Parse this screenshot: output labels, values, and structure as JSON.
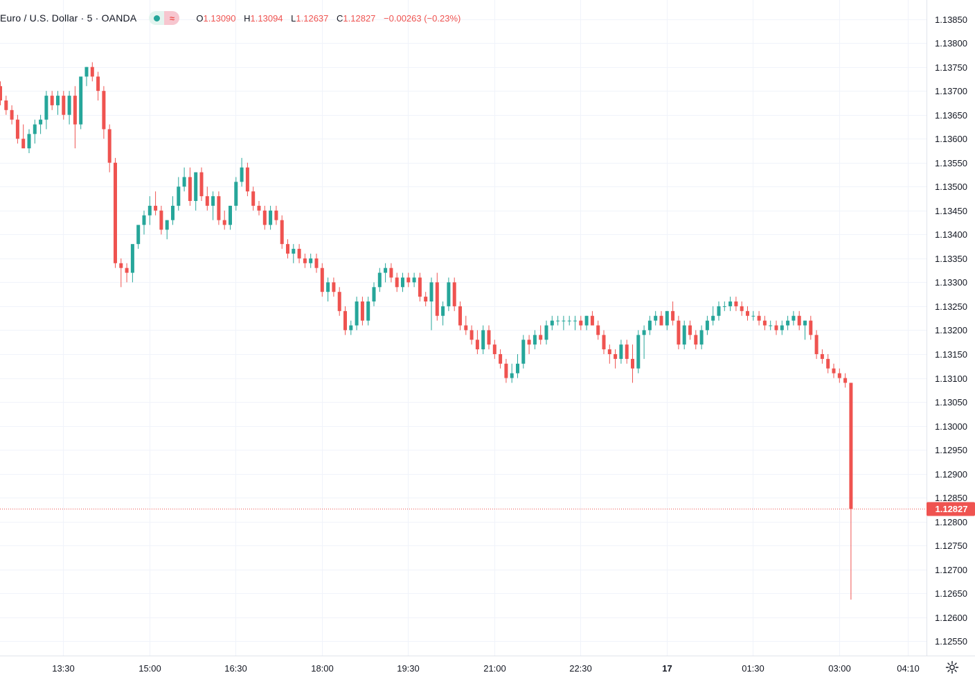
{
  "legend": {
    "symbol": "Euro / U.S. Dollar · 5 · OANDA",
    "open_key": "O",
    "open": "1.13090",
    "high_key": "H",
    "high": "1.13094",
    "low_key": "L",
    "low": "1.12637",
    "close_key": "C",
    "close": "1.12827",
    "change": "−0.00263 (−0.23%)"
  },
  "colors": {
    "up": "#26a69a",
    "down": "#ef5350",
    "grid": "#f0f3fa",
    "axis_line": "#e0e3eb"
  },
  "icons": {
    "visibility": "dot-icon",
    "compare": "wave-icon",
    "settings": "gear-icon"
  },
  "chart_data": {
    "type": "candlestick",
    "price_label": "1.12827",
    "ylim": [
      1.1252,
      1.1389
    ],
    "y_ticks": [
      "1.13850",
      "1.13800",
      "1.13750",
      "1.13700",
      "1.13650",
      "1.13600",
      "1.13550",
      "1.13500",
      "1.13450",
      "1.13400",
      "1.13350",
      "1.13300",
      "1.13250",
      "1.13200",
      "1.13150",
      "1.13100",
      "1.13050",
      "1.13000",
      "1.12950",
      "1.12900",
      "1.12850",
      "1.12800",
      "1.12750",
      "1.12700",
      "1.12650",
      "1.12600",
      "1.12550"
    ],
    "x_ticks": [
      "13:30",
      "15:00",
      "16:30",
      "18:00",
      "19:30",
      "21:00",
      "22:30",
      "17",
      "01:30",
      "03:00",
      "04:10"
    ],
    "x_tick_bar_index": [
      11,
      26,
      41,
      56,
      71,
      86,
      101,
      116,
      131,
      146,
      158
    ],
    "bold_ticks": [
      "17"
    ],
    "ohlc": [
      [
        1.1371,
        1.1372,
        1.1367,
        1.1368
      ],
      [
        1.1368,
        1.1369,
        1.1365,
        1.1366
      ],
      [
        1.1366,
        1.1367,
        1.1363,
        1.1364
      ],
      [
        1.1364,
        1.1365,
        1.1359,
        1.136
      ],
      [
        1.136,
        1.1363,
        1.1358,
        1.1358
      ],
      [
        1.1358,
        1.1362,
        1.1357,
        1.1361
      ],
      [
        1.1361,
        1.1364,
        1.1359,
        1.1363
      ],
      [
        1.1363,
        1.1365,
        1.1361,
        1.1364
      ],
      [
        1.1364,
        1.137,
        1.1362,
        1.1369
      ],
      [
        1.1369,
        1.137,
        1.1366,
        1.1367
      ],
      [
        1.1367,
        1.137,
        1.1365,
        1.1369
      ],
      [
        1.1369,
        1.137,
        1.1364,
        1.1365
      ],
      [
        1.1365,
        1.137,
        1.1363,
        1.1369
      ],
      [
        1.1369,
        1.1371,
        1.1358,
        1.1363
      ],
      [
        1.1363,
        1.1373,
        1.1362,
        1.1373
      ],
      [
        1.1373,
        1.1375,
        1.1371,
        1.1375
      ],
      [
        1.1375,
        1.1376,
        1.1372,
        1.1373
      ],
      [
        1.1373,
        1.1374,
        1.1368,
        1.137
      ],
      [
        1.137,
        1.1371,
        1.136,
        1.1362
      ],
      [
        1.1362,
        1.1363,
        1.1353,
        1.1355
      ],
      [
        1.1355,
        1.1356,
        1.1333,
        1.1334
      ],
      [
        1.1334,
        1.1335,
        1.1329,
        1.1333
      ],
      [
        1.1333,
        1.1334,
        1.133,
        1.1332
      ],
      [
        1.1332,
        1.1337,
        1.133,
        1.1338
      ],
      [
        1.1338,
        1.1342,
        1.1337,
        1.1342
      ],
      [
        1.1342,
        1.1345,
        1.134,
        1.1344
      ],
      [
        1.1344,
        1.1348,
        1.1342,
        1.1346
      ],
      [
        1.1346,
        1.1349,
        1.1344,
        1.1345
      ],
      [
        1.1345,
        1.1346,
        1.134,
        1.1341
      ],
      [
        1.1341,
        1.1343,
        1.1339,
        1.1343
      ],
      [
        1.1343,
        1.1348,
        1.1342,
        1.1346
      ],
      [
        1.1346,
        1.1352,
        1.1345,
        1.135
      ],
      [
        1.135,
        1.1354,
        1.1349,
        1.1352
      ],
      [
        1.1352,
        1.1354,
        1.1346,
        1.1347
      ],
      [
        1.1347,
        1.1353,
        1.1345,
        1.1353
      ],
      [
        1.1353,
        1.1354,
        1.1347,
        1.1348
      ],
      [
        1.1348,
        1.135,
        1.1345,
        1.1346
      ],
      [
        1.1346,
        1.1349,
        1.1343,
        1.1348
      ],
      [
        1.1348,
        1.1349,
        1.1342,
        1.1343
      ],
      [
        1.1343,
        1.1345,
        1.1341,
        1.1342
      ],
      [
        1.1342,
        1.1346,
        1.1341,
        1.1346
      ],
      [
        1.1346,
        1.1352,
        1.1345,
        1.1351
      ],
      [
        1.1351,
        1.1356,
        1.135,
        1.1354
      ],
      [
        1.1354,
        1.1355,
        1.1348,
        1.1349
      ],
      [
        1.1349,
        1.135,
        1.1345,
        1.1346
      ],
      [
        1.1346,
        1.1347,
        1.1344,
        1.1345
      ],
      [
        1.1345,
        1.1346,
        1.1341,
        1.1342
      ],
      [
        1.1342,
        1.1346,
        1.1341,
        1.1345
      ],
      [
        1.1345,
        1.1346,
        1.1342,
        1.1343
      ],
      [
        1.1343,
        1.1344,
        1.1337,
        1.1338
      ],
      [
        1.1338,
        1.1339,
        1.1335,
        1.1336
      ],
      [
        1.1336,
        1.1338,
        1.1334,
        1.1337
      ],
      [
        1.1337,
        1.1338,
        1.1334,
        1.1335
      ],
      [
        1.1335,
        1.1336,
        1.1333,
        1.1334
      ],
      [
        1.1334,
        1.1336,
        1.1333,
        1.1335
      ],
      [
        1.1335,
        1.1336,
        1.1332,
        1.1333
      ],
      [
        1.1333,
        1.1334,
        1.1327,
        1.1328
      ],
      [
        1.1328,
        1.1331,
        1.1326,
        1.133
      ],
      [
        1.133,
        1.1331,
        1.1327,
        1.1328
      ],
      [
        1.1328,
        1.1329,
        1.1323,
        1.1324
      ],
      [
        1.1324,
        1.1325,
        1.1319,
        1.132
      ],
      [
        1.132,
        1.1322,
        1.1319,
        1.1321
      ],
      [
        1.1321,
        1.1327,
        1.132,
        1.1326
      ],
      [
        1.1326,
        1.1327,
        1.1321,
        1.1322
      ],
      [
        1.1322,
        1.1327,
        1.1321,
        1.1326
      ],
      [
        1.1326,
        1.133,
        1.1325,
        1.1329
      ],
      [
        1.1329,
        1.1333,
        1.1328,
        1.1332
      ],
      [
        1.1332,
        1.1334,
        1.133,
        1.1333
      ],
      [
        1.1333,
        1.1334,
        1.133,
        1.1331
      ],
      [
        1.1331,
        1.1332,
        1.1328,
        1.1329
      ],
      [
        1.1329,
        1.1332,
        1.1328,
        1.1331
      ],
      [
        1.1331,
        1.1332,
        1.1329,
        1.133
      ],
      [
        1.133,
        1.1332,
        1.1329,
        1.1331
      ],
      [
        1.1331,
        1.1332,
        1.1326,
        1.1327
      ],
      [
        1.1327,
        1.1328,
        1.1325,
        1.1326
      ],
      [
        1.1326,
        1.1331,
        1.132,
        1.133
      ],
      [
        1.133,
        1.1332,
        1.1322,
        1.1323
      ],
      [
        1.1323,
        1.1326,
        1.1321,
        1.1325
      ],
      [
        1.1325,
        1.1331,
        1.1324,
        1.133
      ],
      [
        1.133,
        1.1331,
        1.1324,
        1.1325
      ],
      [
        1.1325,
        1.1326,
        1.132,
        1.1321
      ],
      [
        1.1321,
        1.1323,
        1.1319,
        1.132
      ],
      [
        1.132,
        1.1321,
        1.1317,
        1.1318
      ],
      [
        1.1318,
        1.132,
        1.1315,
        1.1316
      ],
      [
        1.1316,
        1.1321,
        1.1315,
        1.132
      ],
      [
        1.132,
        1.1321,
        1.1316,
        1.1317
      ],
      [
        1.1317,
        1.1318,
        1.1314,
        1.1315
      ],
      [
        1.1315,
        1.1316,
        1.1312,
        1.1313
      ],
      [
        1.1313,
        1.1314,
        1.1309,
        1.131
      ],
      [
        1.131,
        1.1313,
        1.1309,
        1.1311
      ],
      [
        1.1311,
        1.1315,
        1.131,
        1.1313
      ],
      [
        1.1313,
        1.1319,
        1.1312,
        1.1318
      ],
      [
        1.1318,
        1.1319,
        1.1315,
        1.1317
      ],
      [
        1.1317,
        1.132,
        1.1316,
        1.1319
      ],
      [
        1.1319,
        1.1321,
        1.1317,
        1.1318
      ],
      [
        1.1318,
        1.1322,
        1.1317,
        1.1321
      ],
      [
        1.1321,
        1.1323,
        1.132,
        1.1322
      ],
      [
        1.1322,
        1.1323,
        1.1321,
        1.1322
      ],
      [
        1.1322,
        1.1323,
        1.132,
        1.1322
      ],
      [
        1.1322,
        1.1323,
        1.1321,
        1.1322
      ],
      [
        1.1322,
        1.1323,
        1.132,
        1.1322
      ],
      [
        1.1322,
        1.1323,
        1.132,
        1.1321
      ],
      [
        1.1321,
        1.1323,
        1.132,
        1.1323
      ],
      [
        1.1323,
        1.1324,
        1.1321,
        1.1321
      ],
      [
        1.1321,
        1.1322,
        1.1318,
        1.1319
      ],
      [
        1.1319,
        1.132,
        1.1315,
        1.1316
      ],
      [
        1.1316,
        1.1317,
        1.1313,
        1.1315
      ],
      [
        1.1315,
        1.1316,
        1.1312,
        1.1314
      ],
      [
        1.1314,
        1.1318,
        1.1313,
        1.1317
      ],
      [
        1.1317,
        1.1318,
        1.1313,
        1.1314
      ],
      [
        1.1314,
        1.1317,
        1.1309,
        1.1312
      ],
      [
        1.1312,
        1.132,
        1.1311,
        1.1319
      ],
      [
        1.1319,
        1.1321,
        1.1314,
        1.132
      ],
      [
        1.132,
        1.1323,
        1.1319,
        1.1322
      ],
      [
        1.1322,
        1.1324,
        1.1321,
        1.1323
      ],
      [
        1.1323,
        1.1324,
        1.1321,
        1.1321
      ],
      [
        1.1321,
        1.1324,
        1.132,
        1.1324
      ],
      [
        1.1324,
        1.1326,
        1.1321,
        1.1322
      ],
      [
        1.1322,
        1.1323,
        1.1316,
        1.1317
      ],
      [
        1.1317,
        1.1322,
        1.1316,
        1.1321
      ],
      [
        1.1321,
        1.1322,
        1.1318,
        1.1319
      ],
      [
        1.1319,
        1.132,
        1.1316,
        1.1317
      ],
      [
        1.1317,
        1.1321,
        1.1316,
        1.132
      ],
      [
        1.132,
        1.1323,
        1.1319,
        1.1322
      ],
      [
        1.1322,
        1.1325,
        1.1321,
        1.1323
      ],
      [
        1.1323,
        1.1326,
        1.1322,
        1.1325
      ],
      [
        1.1325,
        1.1326,
        1.1324,
        1.1325
      ],
      [
        1.1325,
        1.1327,
        1.1324,
        1.1326
      ],
      [
        1.1326,
        1.1327,
        1.1324,
        1.1325
      ],
      [
        1.1325,
        1.1326,
        1.1323,
        1.1324
      ],
      [
        1.1324,
        1.1325,
        1.1322,
        1.1323
      ],
      [
        1.1323,
        1.1324,
        1.1322,
        1.1323
      ],
      [
        1.1323,
        1.1324,
        1.1321,
        1.1322
      ],
      [
        1.1322,
        1.1323,
        1.132,
        1.1321
      ],
      [
        1.1321,
        1.1322,
        1.132,
        1.1321
      ],
      [
        1.1321,
        1.1322,
        1.1319,
        1.132
      ],
      [
        1.132,
        1.1322,
        1.1319,
        1.1321
      ],
      [
        1.1321,
        1.1323,
        1.132,
        1.1322
      ],
      [
        1.1322,
        1.1324,
        1.1321,
        1.1323
      ],
      [
        1.1323,
        1.1324,
        1.132,
        1.1321
      ],
      [
        1.1321,
        1.1322,
        1.1318,
        1.1322
      ],
      [
        1.1322,
        1.1323,
        1.1318,
        1.1319
      ],
      [
        1.1319,
        1.132,
        1.1314,
        1.1315
      ],
      [
        1.1315,
        1.1316,
        1.1313,
        1.1314
      ],
      [
        1.1314,
        1.1315,
        1.1311,
        1.1312
      ],
      [
        1.1312,
        1.1313,
        1.131,
        1.1311
      ],
      [
        1.1311,
        1.1312,
        1.1309,
        1.131
      ],
      [
        1.131,
        1.1311,
        1.1308,
        1.1309
      ],
      [
        1.1309,
        1.1309,
        1.12637,
        1.12827
      ]
    ]
  }
}
